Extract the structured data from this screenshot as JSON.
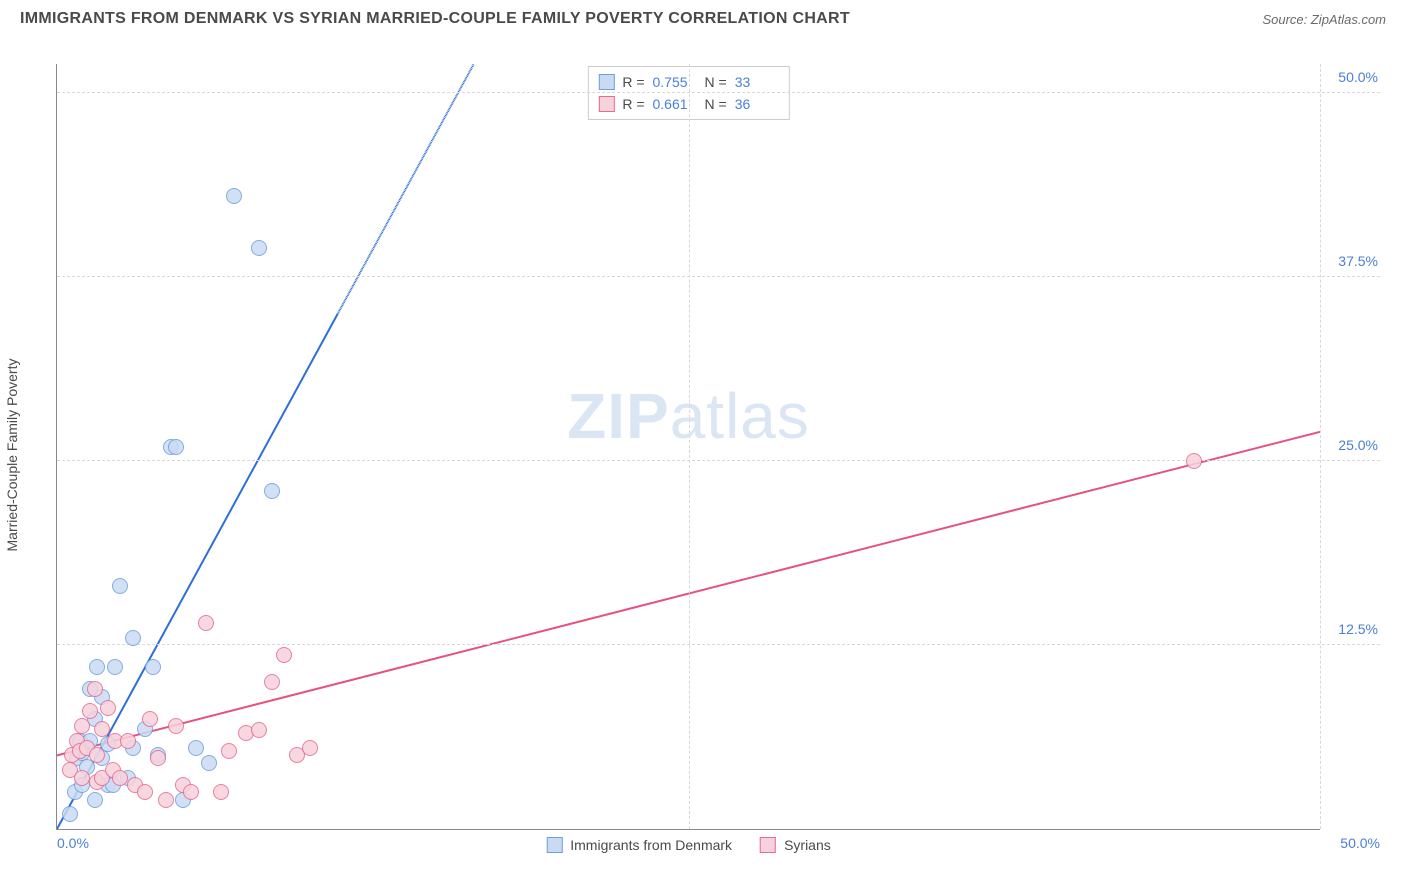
{
  "title": "IMMIGRANTS FROM DENMARK VS SYRIAN MARRIED-COUPLE FAMILY POVERTY CORRELATION CHART",
  "source": "Source: ZipAtlas.com",
  "y_axis_label": "Married-Couple Family Poverty",
  "watermark_bold": "ZIP",
  "watermark_rest": "atlas",
  "chart": {
    "type": "scatter",
    "xlim": [
      0,
      50
    ],
    "ylim": [
      0,
      52
    ],
    "x_ticks": [
      25,
      50
    ],
    "y_ticks": [
      12.5,
      25.0,
      37.5,
      50.0
    ],
    "x_origin_label": "0.0%",
    "x_max_label": "50.0%",
    "y_tick_labels": [
      "12.5%",
      "25.0%",
      "37.5%",
      "50.0%"
    ],
    "grid_color": "#d8d8d8",
    "axis_color": "#888888",
    "background_color": "#ffffff",
    "tick_label_color": "#4a7fd6",
    "marker_radius": 8,
    "marker_stroke_width": 1.2,
    "series": [
      {
        "id": "denmark",
        "label": "Immigrants from Denmark",
        "fill": "#c9dbf3",
        "stroke": "#6d9fe0",
        "line_color": "#2e6fd6",
        "r": "0.755",
        "n": "33",
        "trend": {
          "x1": 0,
          "y1": 0,
          "x2": 16.5,
          "y2": 52,
          "dashed_above_y": 35
        },
        "points": [
          [
            0.5,
            1.0
          ],
          [
            0.7,
            2.5
          ],
          [
            0.8,
            4.8
          ],
          [
            0.9,
            6.0
          ],
          [
            1.0,
            3.0
          ],
          [
            1.0,
            5.2
          ],
          [
            1.2,
            4.2
          ],
          [
            1.3,
            9.5
          ],
          [
            1.3,
            6.0
          ],
          [
            1.5,
            7.5
          ],
          [
            1.5,
            2.0
          ],
          [
            1.6,
            11.0
          ],
          [
            1.8,
            4.8
          ],
          [
            1.8,
            9.0
          ],
          [
            2.0,
            5.8
          ],
          [
            2.0,
            3.0
          ],
          [
            2.2,
            3.0
          ],
          [
            2.3,
            11.0
          ],
          [
            2.5,
            16.5
          ],
          [
            2.8,
            3.5
          ],
          [
            3.0,
            13.0
          ],
          [
            3.0,
            5.5
          ],
          [
            3.5,
            6.8
          ],
          [
            3.8,
            11.0
          ],
          [
            4.0,
            5.0
          ],
          [
            4.5,
            26.0
          ],
          [
            4.7,
            26.0
          ],
          [
            5.0,
            2.0
          ],
          [
            5.5,
            5.5
          ],
          [
            6.0,
            4.5
          ],
          [
            7.0,
            43.0
          ],
          [
            8.0,
            39.5
          ],
          [
            8.5,
            23.0
          ]
        ]
      },
      {
        "id": "syrians",
        "label": "Syrians",
        "fill": "#f6d2dc",
        "stroke": "#e86a8f",
        "line_color": "#e5537d",
        "r": "0.661",
        "n": "36",
        "trend": {
          "x1": 0,
          "y1": 5.0,
          "x2": 50,
          "y2": 27.0
        },
        "points": [
          [
            0.5,
            4.0
          ],
          [
            0.6,
            5.0
          ],
          [
            0.8,
            6.0
          ],
          [
            0.9,
            5.3
          ],
          [
            1.0,
            3.5
          ],
          [
            1.0,
            7.0
          ],
          [
            1.2,
            5.5
          ],
          [
            1.3,
            8.0
          ],
          [
            1.5,
            9.5
          ],
          [
            1.6,
            3.2
          ],
          [
            1.6,
            5.0
          ],
          [
            1.8,
            3.5
          ],
          [
            1.8,
            6.8
          ],
          [
            2.0,
            8.2
          ],
          [
            2.2,
            4.0
          ],
          [
            2.3,
            6.0
          ],
          [
            2.5,
            3.5
          ],
          [
            2.8,
            6.0
          ],
          [
            3.1,
            3.0
          ],
          [
            3.5,
            2.5
          ],
          [
            3.7,
            7.5
          ],
          [
            4.0,
            4.8
          ],
          [
            4.3,
            2.0
          ],
          [
            4.7,
            7.0
          ],
          [
            5.0,
            3.0
          ],
          [
            5.3,
            2.5
          ],
          [
            5.9,
            14.0
          ],
          [
            6.5,
            2.5
          ],
          [
            6.8,
            5.3
          ],
          [
            7.5,
            6.5
          ],
          [
            8.0,
            6.7
          ],
          [
            8.5,
            10.0
          ],
          [
            9.0,
            11.8
          ],
          [
            9.5,
            5.0
          ],
          [
            10.0,
            5.5
          ],
          [
            45.0,
            25.0
          ]
        ]
      }
    ]
  },
  "legend_top": {
    "r_label": "R =",
    "n_label": "N ="
  }
}
